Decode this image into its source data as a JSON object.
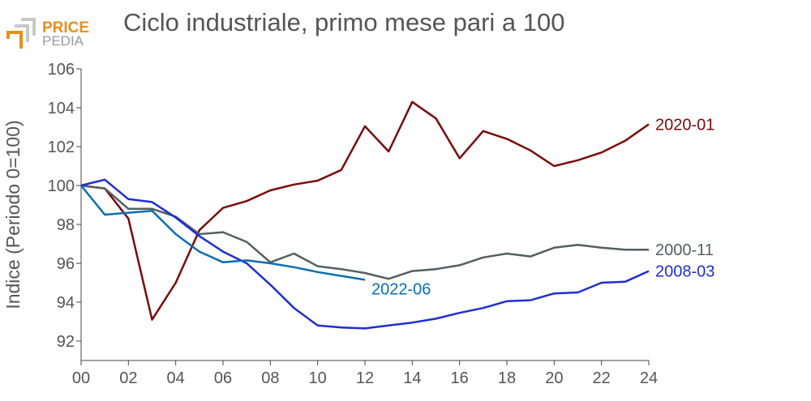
{
  "brand": {
    "line1": "PRICE",
    "line2": "PEDIA",
    "icon": "pricepedia-logo-mark",
    "colors": {
      "primary": "#e8901a",
      "secondary": "#9a9a9a"
    }
  },
  "chart_data": {
    "type": "line",
    "title": "Ciclo industriale, primo mese pari a 100",
    "xlabel": "",
    "ylabel": "Indice (Periodo 0=100)",
    "xlim": [
      0,
      24
    ],
    "ylim": [
      91,
      106
    ],
    "x_ticks": [
      "00",
      "02",
      "04",
      "06",
      "08",
      "10",
      "12",
      "14",
      "16",
      "18",
      "20",
      "22",
      "24"
    ],
    "y_ticks": [
      "92",
      "94",
      "96",
      "98",
      "100",
      "102",
      "104",
      "106"
    ],
    "grid": false,
    "legend": "direct labels at line ends",
    "series": [
      {
        "name": "2020-01",
        "color": "#7a0a0a",
        "x": [
          0,
          1,
          2,
          3,
          4,
          5,
          6,
          7,
          8,
          9,
          10,
          11,
          12,
          13,
          14,
          15,
          16,
          17,
          18,
          19,
          20,
          21,
          22,
          23,
          24
        ],
        "values": [
          100.0,
          99.85,
          98.3,
          93.1,
          95.0,
          97.7,
          98.85,
          99.2,
          99.75,
          100.05,
          100.25,
          100.8,
          103.05,
          101.75,
          104.3,
          103.45,
          101.4,
          102.8,
          102.4,
          101.8,
          101.0,
          101.3,
          101.7,
          102.3,
          103.15
        ]
      },
      {
        "name": "2000-11",
        "color": "#555f5f",
        "x": [
          0,
          1,
          2,
          3,
          4,
          5,
          6,
          7,
          8,
          9,
          10,
          11,
          12,
          13,
          14,
          15,
          16,
          17,
          18,
          19,
          20,
          21,
          22,
          23,
          24
        ],
        "values": [
          100.0,
          99.85,
          98.8,
          98.8,
          98.4,
          97.5,
          97.6,
          97.1,
          96.05,
          96.5,
          95.85,
          95.7,
          95.5,
          95.2,
          95.6,
          95.7,
          95.9,
          96.3,
          96.5,
          96.35,
          96.8,
          96.95,
          96.8,
          96.7,
          96.7
        ]
      },
      {
        "name": "2008-03",
        "color": "#1e2ed2",
        "x": [
          0,
          1,
          2,
          3,
          4,
          5,
          6,
          7,
          8,
          9,
          10,
          11,
          12,
          13,
          14,
          15,
          16,
          17,
          18,
          19,
          20,
          21,
          22,
          23,
          24
        ],
        "values": [
          100.0,
          100.3,
          99.3,
          99.15,
          98.35,
          97.4,
          96.6,
          96.0,
          94.9,
          93.7,
          92.8,
          92.7,
          92.65,
          92.8,
          92.95,
          93.15,
          93.45,
          93.7,
          94.05,
          94.1,
          94.45,
          94.5,
          95.0,
          95.05,
          95.6
        ]
      },
      {
        "name": "2022-06",
        "color": "#0a6eb4",
        "x": [
          0,
          1,
          2,
          3,
          4,
          5,
          6,
          7,
          8,
          9,
          10,
          11,
          12
        ],
        "values": [
          100.0,
          98.5,
          98.6,
          98.7,
          97.5,
          96.6,
          96.05,
          96.15,
          96.0,
          95.8,
          95.55,
          95.35,
          95.15
        ]
      }
    ]
  }
}
